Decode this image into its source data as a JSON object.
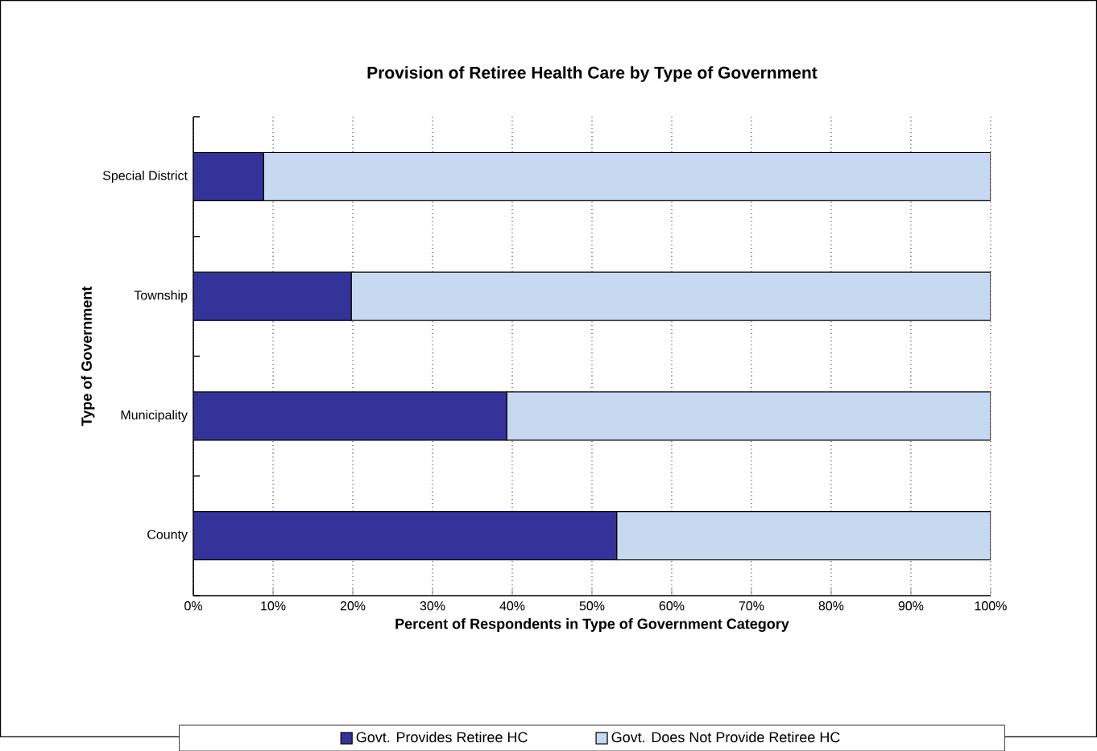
{
  "chart_data": {
    "type": "bar",
    "orientation": "horizontal",
    "stacked": true,
    "title": "Provision of Retiree Health Care by Type of Government",
    "xlabel": "Percent of Respondents in Type of Government Category",
    "ylabel": "Type of Government",
    "categories": [
      "Special District",
      "Township",
      "Municipality",
      "County"
    ],
    "series": [
      {
        "name": "Govt. Provides Retiree HC",
        "color": "#333399",
        "values": [
          8.8,
          19.8,
          39.3,
          53.1
        ]
      },
      {
        "name": "Govt. Does Not Provide Retiree HC",
        "color": "#c6d9f0",
        "values": [
          91.2,
          80.2,
          60.7,
          46.9
        ]
      }
    ],
    "xlim": [
      0,
      100
    ],
    "xticks": [
      {
        "value": 0,
        "label": "0%"
      },
      {
        "value": 10,
        "label": "10%"
      },
      {
        "value": 20,
        "label": "20%"
      },
      {
        "value": 30,
        "label": "30%"
      },
      {
        "value": 40,
        "label": "40%"
      },
      {
        "value": 50,
        "label": "50%"
      },
      {
        "value": 60,
        "label": "60%"
      },
      {
        "value": 70,
        "label": "70%"
      },
      {
        "value": 80,
        "label": "80%"
      },
      {
        "value": 90,
        "label": "90%"
      },
      {
        "value": 100,
        "label": "100%"
      }
    ],
    "grid": "x",
    "legend": "bottom"
  }
}
